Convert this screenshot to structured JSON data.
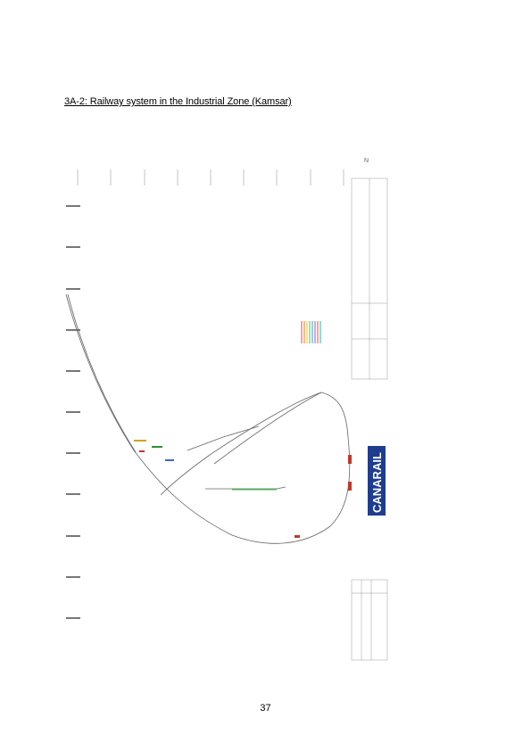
{
  "document": {
    "section_title": "3A-2: Railway system in the Industrial Zone (Kamsar)",
    "page_number": "37"
  },
  "drawing": {
    "logo_text": "CANARAIL",
    "logo_color": "#1f3d8f",
    "track_color": "#555555",
    "north_marker": "N"
  }
}
